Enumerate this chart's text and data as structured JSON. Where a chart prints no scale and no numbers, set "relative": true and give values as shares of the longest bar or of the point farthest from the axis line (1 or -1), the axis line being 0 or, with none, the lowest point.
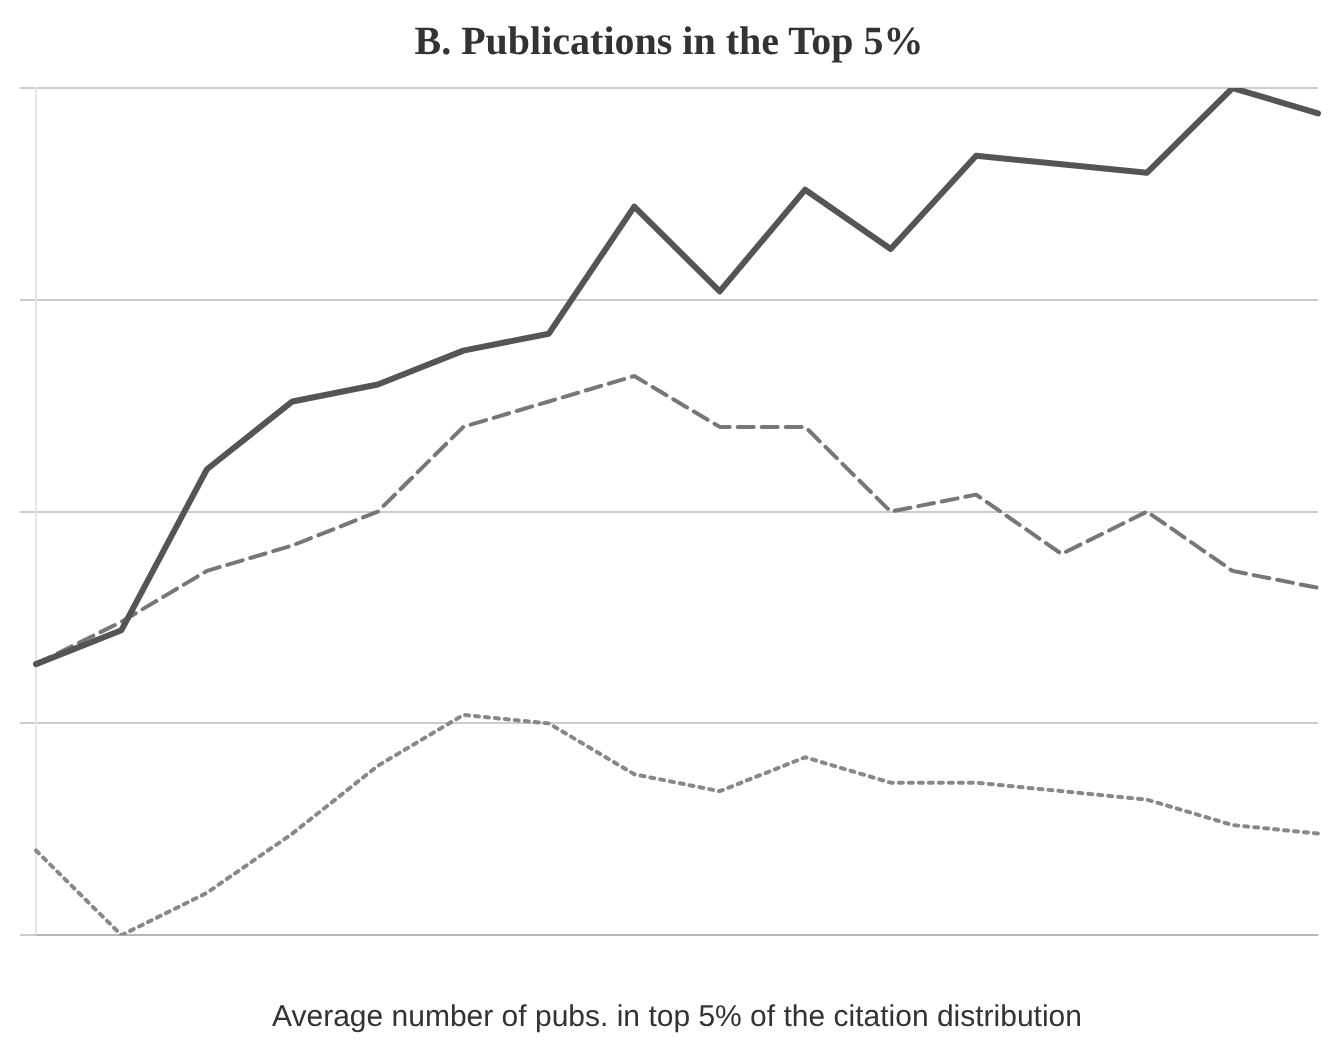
{
  "chart_data": {
    "type": "line",
    "title": "B. Publications in the Top 5%",
    "xlabel": "Average number of pubs. in top 5% of the citation distribution",
    "relative": true,
    "grid": "y",
    "marker": "none",
    "categories": [
      null,
      null,
      null,
      null,
      null,
      null,
      null,
      null,
      null,
      null,
      null,
      null,
      null,
      null,
      null,
      null
    ],
    "series": [
      {
        "color": "#555555",
        "line_style": "solid",
        "values": [
          0.32,
          0.36,
          0.55,
          0.63,
          0.65,
          0.69,
          0.71,
          0.86,
          0.76,
          0.88,
          0.81,
          0.92,
          0.91,
          0.9,
          1.0,
          0.97
        ]
      },
      {
        "color": "#777777",
        "line_style": "dashed",
        "values": [
          0.32,
          0.37,
          0.43,
          0.46,
          0.5,
          0.6,
          0.63,
          0.66,
          0.6,
          0.6,
          0.5,
          0.52,
          0.45,
          0.5,
          0.43,
          0.41
        ]
      },
      {
        "color": "#888888",
        "line_style": "dotted",
        "values": [
          0.1,
          0.0,
          0.05,
          0.12,
          0.2,
          0.26,
          0.25,
          0.19,
          0.17,
          0.21,
          0.18,
          0.18,
          0.17,
          0.16,
          0.13,
          0.12
        ]
      }
    ]
  }
}
